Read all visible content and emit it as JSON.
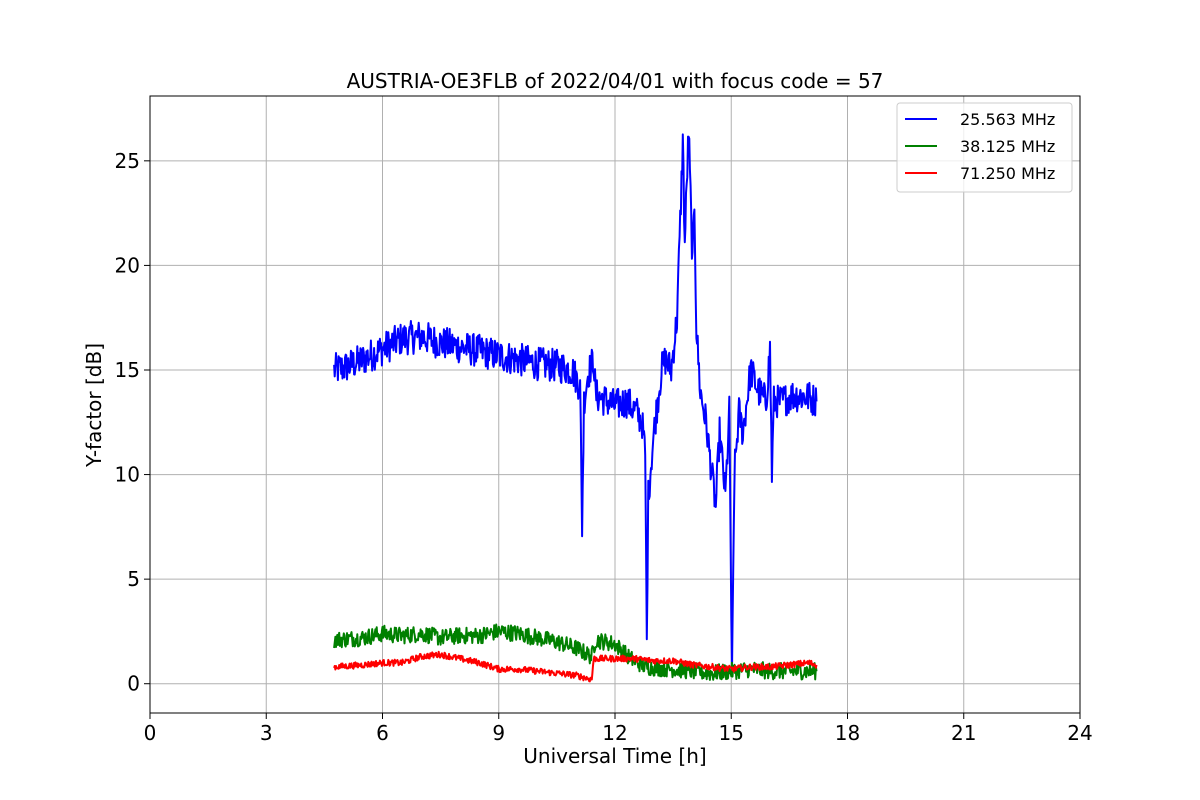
{
  "chart_data": {
    "type": "line",
    "title": "AUSTRIA-OE3FLB of 2022/04/01 with focus code = 57",
    "xlabel": "Universal Time [h]",
    "ylabel": "Y-factor [dB]",
    "xlim": [
      0,
      24
    ],
    "ylim": [
      -1.4,
      28.1
    ],
    "xticks": [
      0,
      3,
      6,
      9,
      12,
      15,
      18,
      21,
      24
    ],
    "yticks": [
      0,
      5,
      10,
      15,
      20,
      25
    ],
    "grid": true,
    "legend_position": "top-right",
    "series": [
      {
        "name": "25.563 MHz",
        "color": "#0000ff",
        "noise": 0.8,
        "points": [
          [
            4.75,
            15.0
          ],
          [
            5.0,
            15.1
          ],
          [
            5.5,
            15.5
          ],
          [
            6.0,
            16.0
          ],
          [
            6.5,
            16.5
          ],
          [
            7.0,
            16.6
          ],
          [
            7.5,
            16.3
          ],
          [
            8.0,
            16.1
          ],
          [
            8.5,
            15.9
          ],
          [
            9.0,
            15.7
          ],
          [
            9.5,
            15.5
          ],
          [
            10.0,
            15.3
          ],
          [
            10.5,
            15.2
          ],
          [
            10.9,
            15.0
          ],
          [
            11.1,
            14.2
          ],
          [
            11.15,
            7.5
          ],
          [
            11.2,
            13.5
          ],
          [
            11.3,
            14.8
          ],
          [
            11.45,
            15.5
          ],
          [
            11.5,
            13.8
          ],
          [
            12.0,
            13.3
          ],
          [
            12.3,
            13.5
          ],
          [
            12.55,
            13.0
          ],
          [
            12.7,
            12.5
          ],
          [
            12.78,
            11.0
          ],
          [
            12.82,
            2.0
          ],
          [
            12.86,
            9.0
          ],
          [
            13.0,
            12.0
          ],
          [
            13.2,
            15.0
          ],
          [
            13.3,
            15.5
          ],
          [
            13.45,
            15.0
          ],
          [
            13.6,
            17.5
          ],
          [
            13.7,
            23.0
          ],
          [
            13.75,
            26.0
          ],
          [
            13.8,
            21.0
          ],
          [
            13.9,
            26.5
          ],
          [
            14.0,
            20.0
          ],
          [
            14.05,
            23.0
          ],
          [
            14.1,
            17.0
          ],
          [
            14.2,
            14.0
          ],
          [
            14.35,
            12.5
          ],
          [
            14.5,
            10.0
          ],
          [
            14.6,
            8.5
          ],
          [
            14.7,
            12.0
          ],
          [
            14.85,
            9.0
          ],
          [
            14.95,
            13.0
          ],
          [
            15.02,
            0.0
          ],
          [
            15.08,
            10.0
          ],
          [
            15.2,
            13.0
          ],
          [
            15.3,
            12.0
          ],
          [
            15.5,
            15.0
          ],
          [
            15.7,
            14.0
          ],
          [
            15.9,
            13.5
          ],
          [
            16.0,
            16.0
          ],
          [
            16.05,
            10.0
          ],
          [
            16.1,
            13.5
          ],
          [
            16.3,
            13.5
          ],
          [
            16.6,
            13.8
          ],
          [
            17.0,
            13.7
          ],
          [
            17.2,
            13.5
          ]
        ]
      },
      {
        "name": "38.125 MHz",
        "color": "#008000",
        "noise": 0.4,
        "points": [
          [
            4.75,
            2.1
          ],
          [
            5.5,
            2.2
          ],
          [
            6.0,
            2.4
          ],
          [
            6.5,
            2.3
          ],
          [
            7.0,
            2.4
          ],
          [
            7.5,
            2.2
          ],
          [
            8.0,
            2.3
          ],
          [
            8.5,
            2.3
          ],
          [
            9.0,
            2.5
          ],
          [
            9.5,
            2.4
          ],
          [
            10.0,
            2.2
          ],
          [
            10.5,
            2.0
          ],
          [
            11.0,
            1.7
          ],
          [
            11.4,
            1.3
          ],
          [
            11.5,
            2.1
          ],
          [
            12.0,
            1.9
          ],
          [
            12.4,
            1.2
          ],
          [
            12.8,
            0.8
          ],
          [
            13.5,
            0.7
          ],
          [
            14.0,
            0.6
          ],
          [
            14.5,
            0.5
          ],
          [
            15.0,
            0.6
          ],
          [
            15.5,
            0.7
          ],
          [
            16.0,
            0.6
          ],
          [
            16.5,
            0.6
          ],
          [
            17.0,
            0.6
          ],
          [
            17.2,
            0.6
          ]
        ]
      },
      {
        "name": "71.250 MHz",
        "color": "#ff0000",
        "noise": 0.15,
        "points": [
          [
            4.75,
            0.8
          ],
          [
            5.5,
            0.9
          ],
          [
            6.0,
            1.0
          ],
          [
            6.5,
            1.0
          ],
          [
            7.0,
            1.3
          ],
          [
            7.5,
            1.4
          ],
          [
            8.0,
            1.2
          ],
          [
            8.5,
            1.0
          ],
          [
            9.0,
            0.7
          ],
          [
            9.5,
            0.7
          ],
          [
            10.0,
            0.6
          ],
          [
            10.5,
            0.5
          ],
          [
            11.0,
            0.4
          ],
          [
            11.4,
            0.2
          ],
          [
            11.45,
            1.2
          ],
          [
            12.0,
            1.2
          ],
          [
            12.5,
            1.2
          ],
          [
            13.0,
            1.1
          ],
          [
            13.5,
            1.1
          ],
          [
            14.0,
            0.9
          ],
          [
            14.5,
            0.8
          ],
          [
            15.0,
            0.7
          ],
          [
            15.5,
            0.8
          ],
          [
            16.0,
            0.8
          ],
          [
            16.5,
            0.9
          ],
          [
            17.0,
            1.0
          ],
          [
            17.2,
            0.9
          ]
        ]
      }
    ]
  }
}
